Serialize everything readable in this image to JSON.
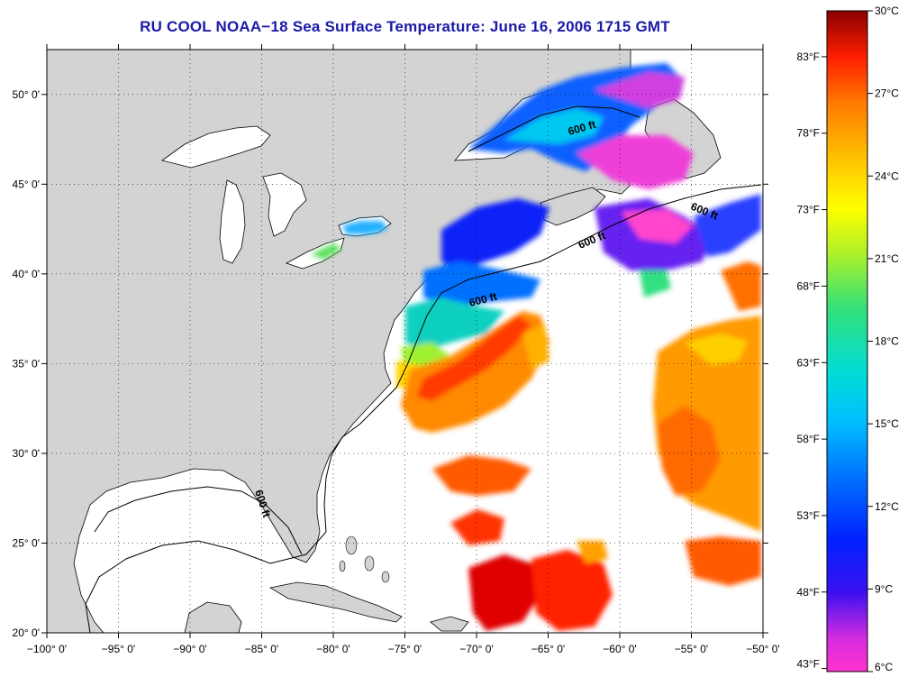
{
  "title": "RU COOL  NOAA−18  Sea Surface Temperature:  June 16, 2006 1715 GMT",
  "map": {
    "lon_range": [
      -100,
      -50
    ],
    "lat_range": [
      20,
      52.5
    ],
    "lon_ticks": [
      {
        "value": -100,
        "label": "−100° 0'"
      },
      {
        "value": -95,
        "label": "−95° 0'"
      },
      {
        "value": -90,
        "label": "−90° 0'"
      },
      {
        "value": -85,
        "label": "−85° 0'"
      },
      {
        "value": -80,
        "label": "−80° 0'"
      },
      {
        "value": -75,
        "label": "−75° 0'"
      },
      {
        "value": -70,
        "label": "−70° 0'"
      },
      {
        "value": -65,
        "label": "−65° 0'"
      },
      {
        "value": -60,
        "label": "−60° 0'"
      },
      {
        "value": -55,
        "label": "−55° 0'"
      },
      {
        "value": -50,
        "label": "−50° 0'"
      }
    ],
    "lat_ticks": [
      {
        "value": 20,
        "label": "20° 0'"
      },
      {
        "value": 25,
        "label": "25° 0'"
      },
      {
        "value": 30,
        "label": "30° 0'"
      },
      {
        "value": 35,
        "label": "35° 0'"
      },
      {
        "value": 40,
        "label": "40° 0'"
      },
      {
        "value": 45,
        "label": "45° 0'"
      },
      {
        "value": 50,
        "label": "50° 0'"
      }
    ],
    "isobath_labels": [
      "600 ft",
      "600 ft",
      "600 ft",
      "600 ft",
      "600 ft"
    ],
    "colors": {
      "land": "#d3d3d3",
      "ocean": "#ffffff",
      "grid": "#000000"
    }
  },
  "colorbar": {
    "celsius_labels": [
      "30°C",
      "27°C",
      "24°C",
      "21°C",
      "18°C",
      "15°C",
      "12°C",
      "9°C",
      "6°C"
    ],
    "fahrenheit_labels": [
      "83°F",
      "78°F",
      "73°F",
      "68°F",
      "63°F",
      "58°F",
      "53°F",
      "48°F",
      "43°F"
    ],
    "range_c": [
      6,
      30
    ],
    "stops": [
      "#ff33cc",
      "#7a2ed8",
      "#0000ff",
      "#0055ff",
      "#00b4ff",
      "#00e0d0",
      "#33dd77",
      "#b8f020",
      "#ffff00",
      "#ffbb00",
      "#ff7700",
      "#ff2200",
      "#dd0000",
      "#880000"
    ]
  }
}
